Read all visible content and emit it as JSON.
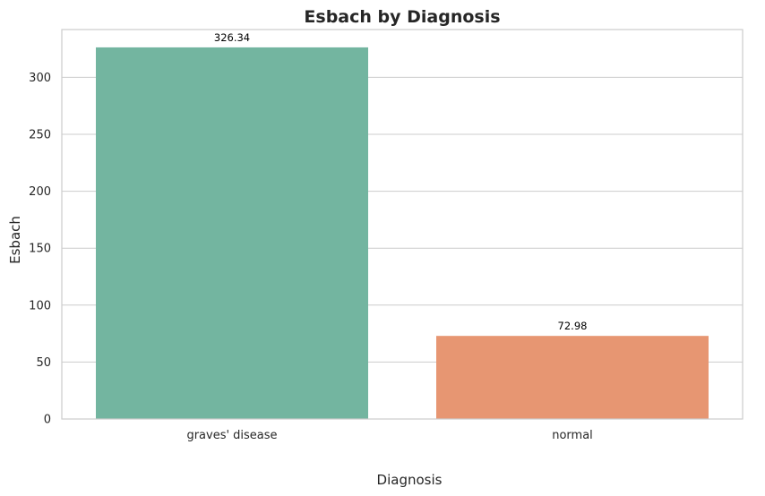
{
  "chart_data": {
    "type": "bar",
    "title": "Esbach by Diagnosis",
    "xlabel": "Diagnosis",
    "ylabel": "Esbach",
    "categories": [
      "graves' disease",
      "normal"
    ],
    "values": [
      326.34,
      72.98
    ],
    "data_labels": [
      "326.34",
      "72.98"
    ],
    "colors": [
      "#73b5a0",
      "#e79672"
    ],
    "ylim": [
      0,
      342
    ],
    "yticks": [
      0,
      50,
      100,
      150,
      200,
      250,
      300
    ],
    "grid": true,
    "legend": "none"
  }
}
